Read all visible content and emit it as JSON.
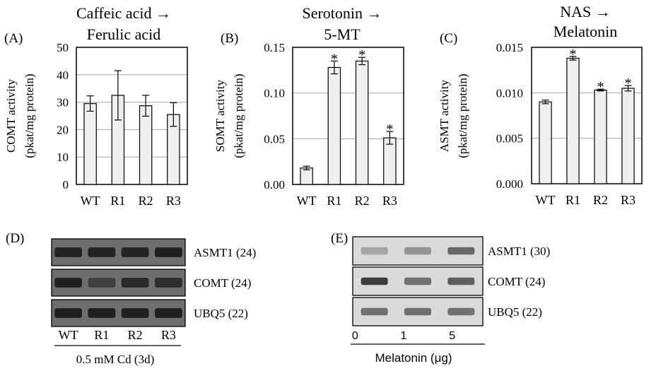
{
  "chart_data": [
    {
      "panel": "(A)",
      "type": "bar",
      "title_lines": [
        "Caffeic acid →",
        "Ferulic acid"
      ],
      "ylabel_lines": [
        "COMT activity",
        "(pkat/mg protein)"
      ],
      "categories": [
        "WT",
        "R1",
        "R2",
        "R3"
      ],
      "values": [
        29.5,
        32.5,
        28.7,
        25.5
      ],
      "errors": [
        2.8,
        9.0,
        3.8,
        4.3
      ],
      "significant": [
        false,
        false,
        false,
        false
      ],
      "ylim": [
        0,
        50
      ],
      "yticks": [
        "0",
        "10",
        "20",
        "30",
        "40",
        "50"
      ],
      "grid": true
    },
    {
      "panel": "(B)",
      "type": "bar",
      "title_lines": [
        "Serotonin →",
        "5-MT"
      ],
      "ylabel_lines": [
        "SOMT activity",
        "(pkat/mg protein)"
      ],
      "categories": [
        "WT",
        "R1",
        "R2",
        "R3"
      ],
      "values": [
        0.018,
        0.128,
        0.135,
        0.051
      ],
      "errors": [
        0.002,
        0.007,
        0.004,
        0.007
      ],
      "significant": [
        false,
        true,
        true,
        true
      ],
      "ylim": [
        0,
        0.15
      ],
      "yticks": [
        "0.00",
        "0.05",
        "0.10",
        "0.15"
      ],
      "grid": true
    },
    {
      "panel": "(C)",
      "type": "bar",
      "title_lines": [
        "NAS →",
        "Melatonin"
      ],
      "ylabel_lines": [
        "ASMT activity",
        "(pkat/mg protein)"
      ],
      "categories": [
        "WT",
        "R1",
        "R2",
        "R3"
      ],
      "values": [
        0.009,
        0.0138,
        0.0103,
        0.0105
      ],
      "errors": [
        0.0002,
        0.0002,
        0.0001,
        0.0003
      ],
      "significant": [
        false,
        true,
        true,
        true
      ],
      "ylim": [
        0,
        0.015
      ],
      "yticks": [
        "0.000",
        "0.005",
        "0.010",
        "0.015"
      ],
      "grid": true
    }
  ],
  "significance_marker": "*",
  "gels": {
    "D": {
      "panel": "(D)",
      "rows": [
        {
          "label": "ASMT1 (24)",
          "intensity": [
            0.85,
            0.85,
            0.85,
            0.9
          ]
        },
        {
          "label": "COMT (24)",
          "intensity": [
            0.9,
            0.4,
            0.75,
            0.7
          ]
        },
        {
          "label": "UBQ5 (22)",
          "intensity": [
            0.9,
            0.9,
            0.9,
            0.9
          ]
        }
      ],
      "lanes": [
        "WT",
        "R1",
        "R2",
        "R3"
      ],
      "footer": "0.5 mM Cd (3d)"
    },
    "E": {
      "panel": "(E)",
      "rows": [
        {
          "label": "ASMT1 (30)",
          "intensity": [
            0.2,
            0.3,
            0.55
          ]
        },
        {
          "label": "COMT (24)",
          "intensity": [
            0.8,
            0.5,
            0.6
          ]
        },
        {
          "label": "UBQ5 (22)",
          "intensity": [
            0.5,
            0.5,
            0.5
          ]
        }
      ],
      "lanes": [
        "0",
        "1",
        "5"
      ],
      "footer": "Melatonin (μg)"
    }
  }
}
